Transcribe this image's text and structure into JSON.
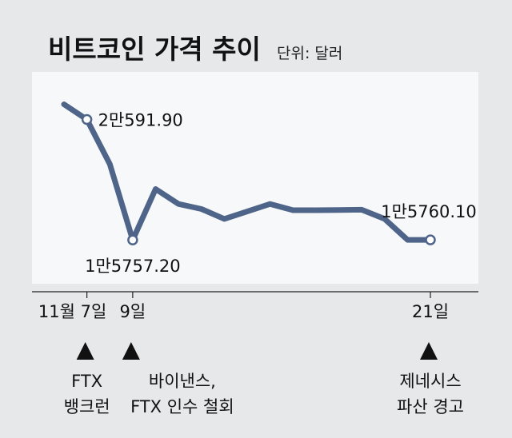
{
  "chart_data": {
    "type": "line",
    "title": "비트코인 가격 추이",
    "unit_label": "단위: 달러",
    "colors": {
      "line": "#4f6489",
      "plot_bg": "#f7f8f9",
      "page_bg": "#e6e8ea"
    },
    "series": [
      {
        "values": [
          21200,
          20591.9,
          18800,
          15757.2,
          17800,
          17200,
          17000,
          16600,
          16900,
          17200,
          16950,
          16950,
          16960,
          16970,
          16600,
          15760.1,
          15760.1
        ]
      }
    ],
    "ylim": [
      14000,
      22500
    ],
    "point_labels": [
      {
        "index": 1,
        "text": "2만591.90"
      },
      {
        "index": 3,
        "text": "1만5757.20"
      },
      {
        "index": 16,
        "text": "1만5760.10"
      }
    ],
    "x_ticks": [
      {
        "index": 1,
        "label": "11월 7일"
      },
      {
        "index": 3,
        "label": "9일"
      },
      {
        "index": 16,
        "label": "21일"
      }
    ],
    "events": [
      {
        "index": 1,
        "lines": [
          "FTX",
          "뱅크런"
        ]
      },
      {
        "index": 3,
        "lines": [
          "바이낸스,",
          "FTX 인수 철회"
        ]
      },
      {
        "index": 16,
        "lines": [
          "제네시스",
          "파산 경고"
        ]
      }
    ],
    "grid": false,
    "legend": "none"
  }
}
